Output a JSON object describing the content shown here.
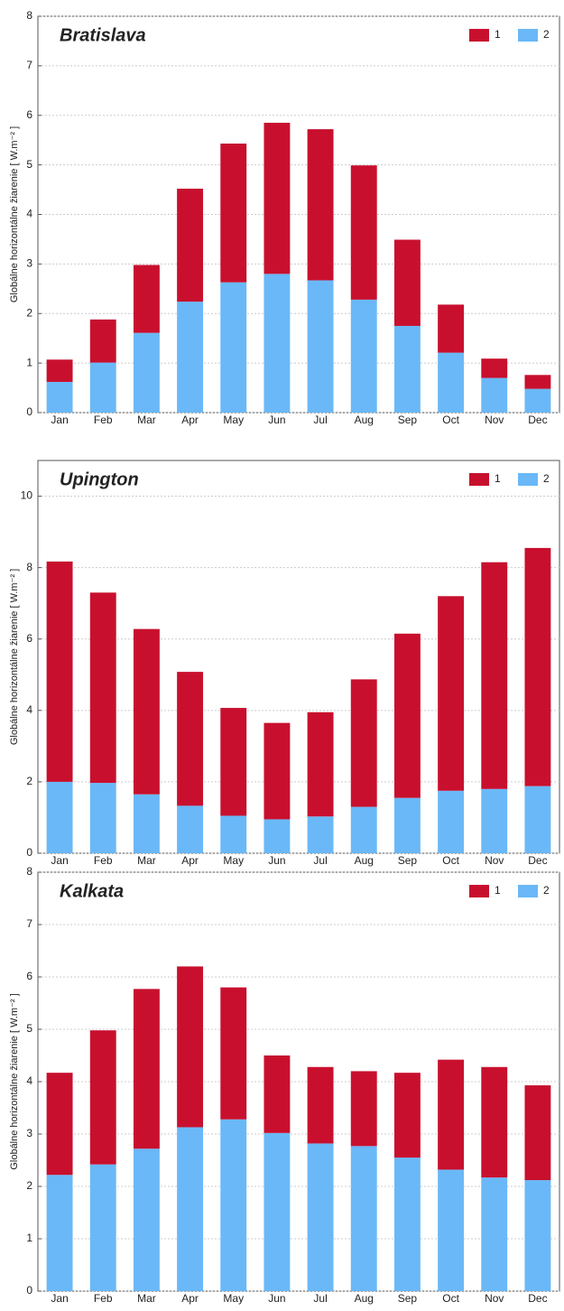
{
  "chart_data": [
    {
      "type": "bar",
      "stacked": true,
      "title": "Bratislava",
      "ylabel": "Globálne horizontálne žiarenie  [ W.m⁻² ]",
      "categories": [
        "Jan",
        "Feb",
        "Mar",
        "Apr",
        "May",
        "Jun",
        "Jul",
        "Aug",
        "Sep",
        "Oct",
        "Nov",
        "Dec"
      ],
      "series": [
        {
          "name": "1",
          "color": "#c8102e",
          "values": [
            0.45,
            0.87,
            1.37,
            2.28,
            2.8,
            3.05,
            3.05,
            2.71,
            1.74,
            0.97,
            0.39,
            0.28
          ]
        },
        {
          "name": "2",
          "color": "#6ab8f7",
          "values": [
            0.62,
            1.01,
            1.61,
            2.24,
            2.63,
            2.8,
            2.67,
            2.28,
            1.75,
            1.21,
            0.7,
            0.48
          ]
        }
      ],
      "ylim": [
        0,
        8
      ],
      "yticks": [
        0,
        1,
        2,
        3,
        4,
        5,
        6,
        7,
        8
      ],
      "grid": true,
      "legend": "upper right"
    },
    {
      "type": "bar",
      "stacked": true,
      "title": "Upington",
      "ylabel": "Globálne horizontálne žiarenie  [ W.m⁻² ]",
      "categories": [
        "Jan",
        "Feb",
        "Mar",
        "Apr",
        "May",
        "Jun",
        "Jul",
        "Aug",
        "Sep",
        "Oct",
        "Nov",
        "Dec"
      ],
      "series": [
        {
          "name": "1",
          "color": "#c8102e",
          "values": [
            6.17,
            5.33,
            4.63,
            3.75,
            3.02,
            2.7,
            2.92,
            3.57,
            4.6,
            5.45,
            6.35,
            6.67
          ]
        },
        {
          "name": "2",
          "color": "#6ab8f7",
          "values": [
            2.0,
            1.97,
            1.65,
            1.33,
            1.05,
            0.95,
            1.03,
            1.3,
            1.55,
            1.75,
            1.8,
            1.88
          ]
        }
      ],
      "ylim": [
        0,
        11
      ],
      "yticks": [
        0,
        2,
        4,
        6,
        8,
        10
      ],
      "grid": true,
      "legend": "upper right"
    },
    {
      "type": "bar",
      "stacked": true,
      "title": "Kalkata",
      "ylabel": "Globálne horizontálne žiarenie  [ W.m⁻² ]",
      "categories": [
        "Jan",
        "Feb",
        "Mar",
        "Apr",
        "May",
        "Jun",
        "Jul",
        "Aug",
        "Sep",
        "Oct",
        "Nov",
        "Dec"
      ],
      "series": [
        {
          "name": "1",
          "color": "#c8102e",
          "values": [
            1.95,
            2.56,
            3.05,
            3.07,
            2.52,
            1.48,
            1.46,
            1.43,
            1.62,
            2.1,
            2.11,
            1.81
          ]
        },
        {
          "name": "2",
          "color": "#6ab8f7",
          "values": [
            2.22,
            2.42,
            2.72,
            3.13,
            3.28,
            3.02,
            2.82,
            2.77,
            2.55,
            2.32,
            2.17,
            2.12
          ]
        }
      ],
      "ylim": [
        0,
        8
      ],
      "yticks": [
        0,
        1,
        2,
        3,
        4,
        5,
        6,
        7,
        8
      ],
      "grid": true,
      "legend": "upper right"
    }
  ]
}
